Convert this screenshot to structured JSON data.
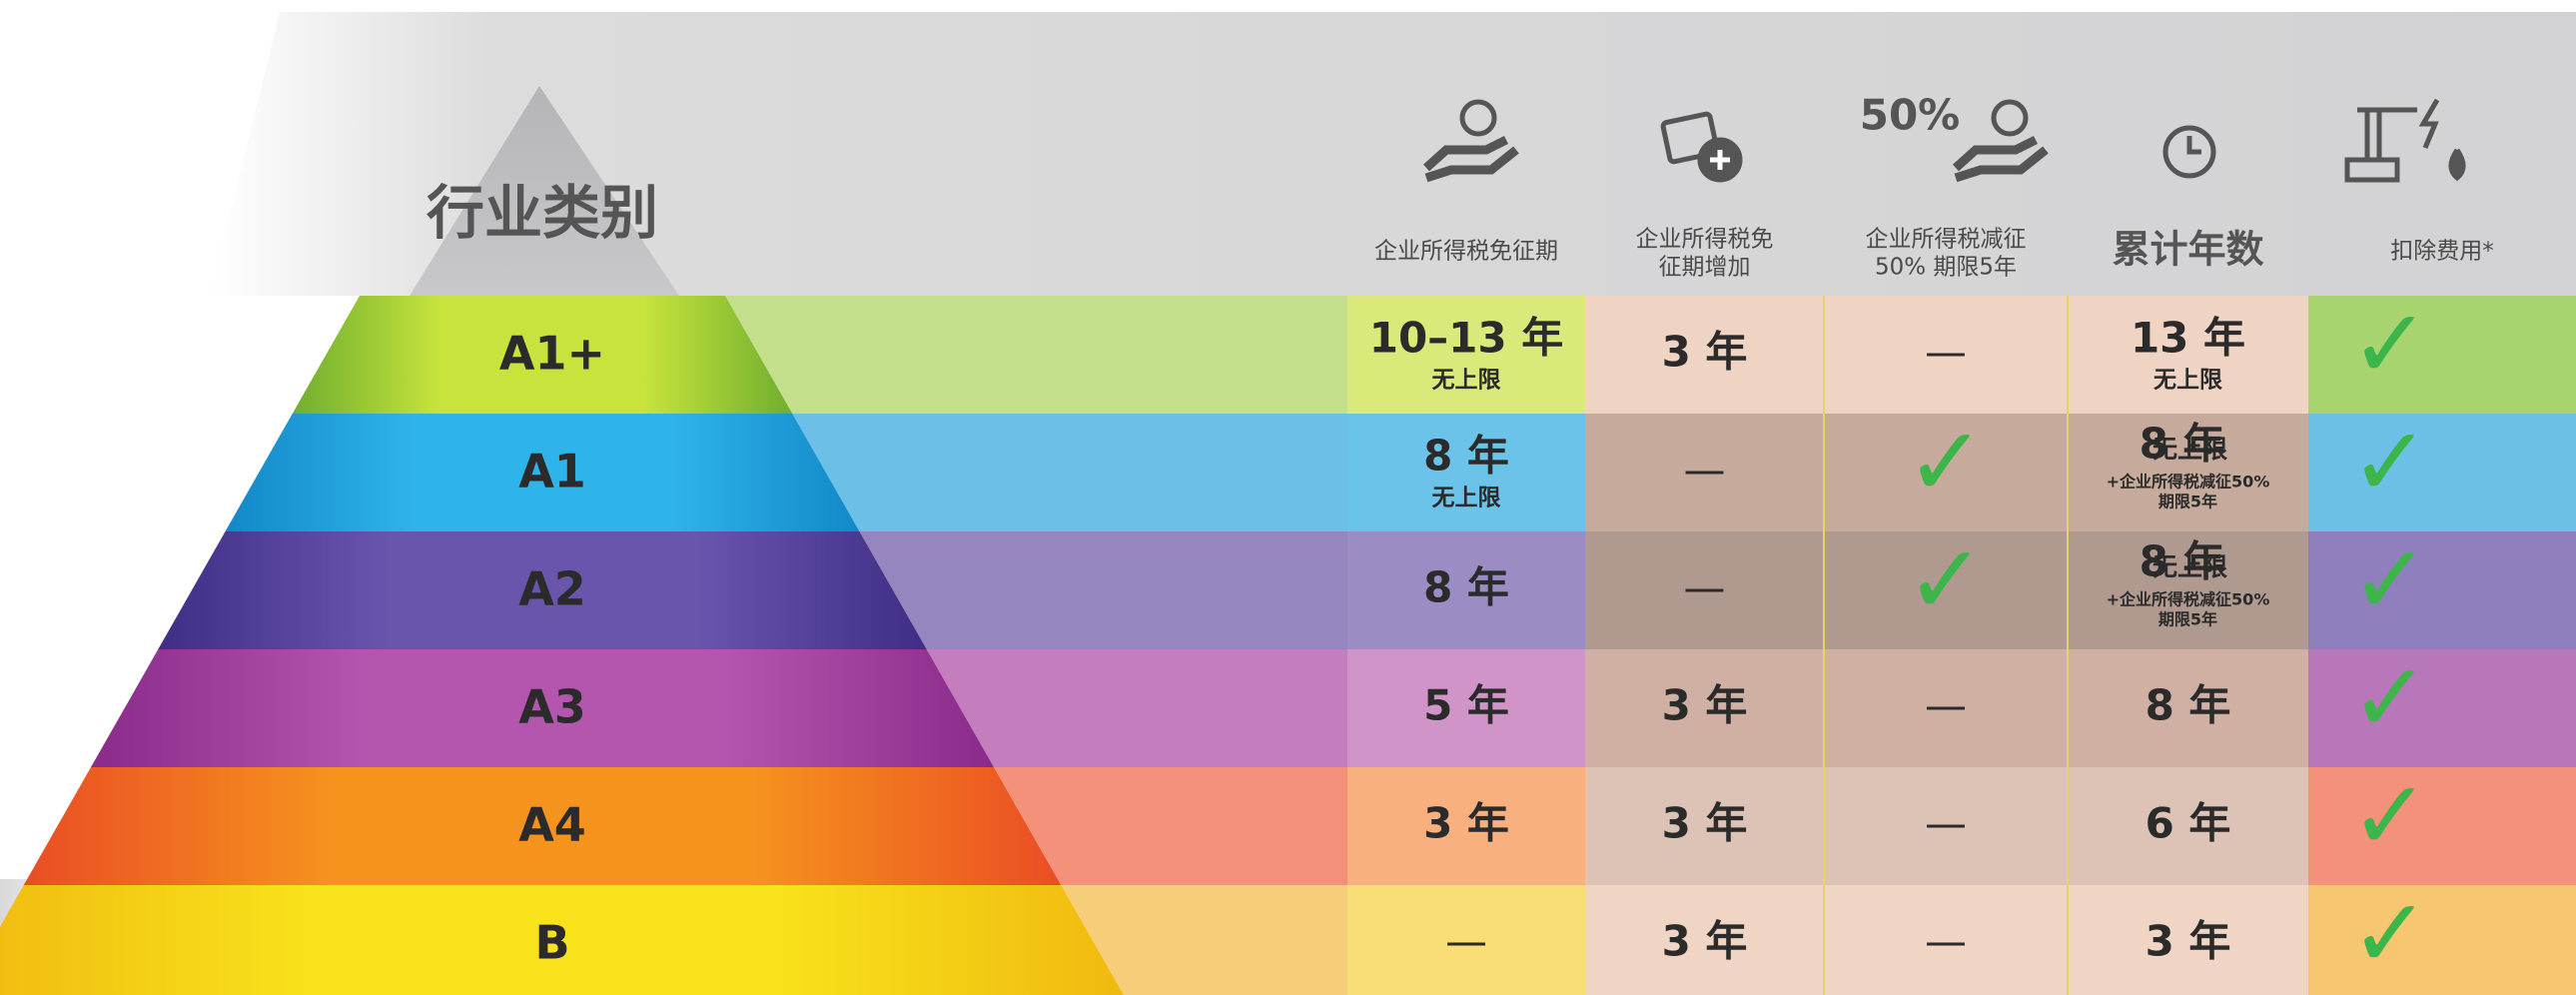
{
  "header": {
    "title": "行业类别",
    "columns": [
      {
        "lines": [
          "企业所得税免征期"
        ]
      },
      {
        "lines": [
          "企业所得税免",
          "征期增加"
        ]
      },
      {
        "badge": "50%",
        "lines": [
          "企业所得税减征",
          "50% 期限5年"
        ]
      },
      {
        "lines": [
          "累计年数"
        ]
      },
      {
        "lines": [
          "扣除费用*"
        ]
      }
    ]
  },
  "rows": [
    {
      "category": "A1+",
      "cells": [
        {
          "main": "10–13 年",
          "sub": "无上限"
        },
        {
          "main": "3 年"
        },
        {
          "main": "—"
        },
        {
          "main": "13 年",
          "sub": "无上限"
        },
        {
          "main": "✓"
        }
      ]
    },
    {
      "category": "A1",
      "cells": [
        {
          "main": "8 年",
          "sub": "无上限"
        },
        {
          "main": "—"
        },
        {
          "main": "✓"
        },
        {
          "main": "8 年",
          "side": "无上限",
          "note": [
            "+企业所得税减征50%",
            "期限5年"
          ]
        },
        {
          "main": "✓"
        }
      ]
    },
    {
      "category": "A2",
      "cells": [
        {
          "main": "8 年"
        },
        {
          "main": "—"
        },
        {
          "main": "✓"
        },
        {
          "main": "8 年",
          "side": "无上限",
          "note": [
            "+企业所得税减征50%",
            "期限5年"
          ]
        },
        {
          "main": "✓"
        }
      ]
    },
    {
      "category": "A3",
      "cells": [
        {
          "main": "5 年"
        },
        {
          "main": "3 年"
        },
        {
          "main": "—"
        },
        {
          "main": "8 年"
        },
        {
          "main": "✓"
        }
      ]
    },
    {
      "category": "A4",
      "cells": [
        {
          "main": "3 年"
        },
        {
          "main": "3 年"
        },
        {
          "main": "—"
        },
        {
          "main": "6 年"
        },
        {
          "main": "✓"
        }
      ]
    },
    {
      "category": "B",
      "cells": [
        {
          "main": "—"
        },
        {
          "main": "3 年"
        },
        {
          "main": "—"
        },
        {
          "main": "3 年"
        },
        {
          "main": "✓"
        }
      ]
    }
  ]
}
